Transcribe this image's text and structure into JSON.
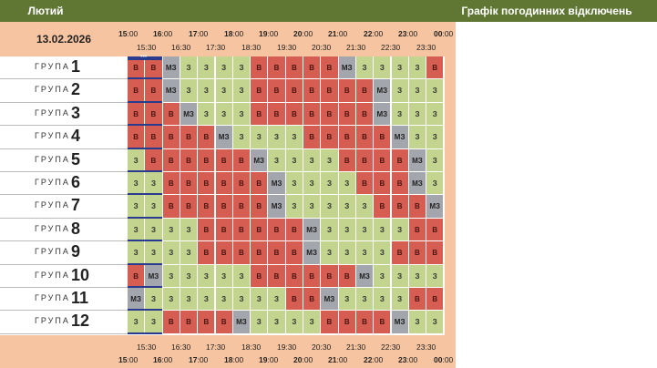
{
  "header": {
    "month": "Лютий",
    "title": "Графік погодинних відключень"
  },
  "date": "13.02.2026",
  "timeline": {
    "hours_major": [
      "15",
      "16",
      "17",
      "18",
      "19",
      "20",
      "21",
      "22",
      "23",
      "00"
    ],
    "minutes_major": ":00",
    "half_hours": [
      "15:30",
      "16:30",
      "17:30",
      "18:30",
      "19:30",
      "20:30",
      "21:30",
      "22:30",
      "23:30"
    ]
  },
  "group_word": "ГРУПА",
  "now_marker": "•••",
  "groups": [
    {
      "num": "1",
      "cells": [
        "В",
        "В",
        "МЗ",
        "З",
        "З",
        "З",
        "З",
        "В",
        "В",
        "В",
        "В",
        "В",
        "МЗ",
        "З",
        "З",
        "З",
        "З",
        "В"
      ]
    },
    {
      "num": "2",
      "cells": [
        "В",
        "В",
        "МЗ",
        "З",
        "З",
        "З",
        "З",
        "В",
        "В",
        "В",
        "В",
        "В",
        "В",
        "В",
        "МЗ",
        "З",
        "З",
        "З"
      ]
    },
    {
      "num": "3",
      "cells": [
        "В",
        "В",
        "В",
        "МЗ",
        "З",
        "З",
        "З",
        "В",
        "В",
        "В",
        "В",
        "В",
        "В",
        "В",
        "МЗ",
        "З",
        "З",
        "З"
      ]
    },
    {
      "num": "4",
      "cells": [
        "В",
        "В",
        "В",
        "В",
        "В",
        "МЗ",
        "З",
        "З",
        "З",
        "З",
        "В",
        "В",
        "В",
        "В",
        "В",
        "МЗ",
        "З",
        "З"
      ]
    },
    {
      "num": "5",
      "cells": [
        "З",
        "В",
        "В",
        "В",
        "В",
        "В",
        "В",
        "МЗ",
        "З",
        "З",
        "З",
        "З",
        "В",
        "В",
        "В",
        "В",
        "МЗ",
        "З"
      ]
    },
    {
      "num": "6",
      "cells": [
        "З",
        "З",
        "В",
        "В",
        "В",
        "В",
        "В",
        "В",
        "МЗ",
        "З",
        "З",
        "З",
        "З",
        "В",
        "В",
        "В",
        "МЗ",
        "З"
      ]
    },
    {
      "num": "7",
      "cells": [
        "З",
        "З",
        "В",
        "В",
        "В",
        "В",
        "В",
        "В",
        "МЗ",
        "З",
        "З",
        "З",
        "З",
        "З",
        "В",
        "В",
        "В",
        "МЗ"
      ]
    },
    {
      "num": "8",
      "cells": [
        "З",
        "З",
        "З",
        "З",
        "В",
        "В",
        "В",
        "В",
        "В",
        "В",
        "МЗ",
        "З",
        "З",
        "З",
        "З",
        "З",
        "В",
        "В"
      ]
    },
    {
      "num": "9",
      "cells": [
        "З",
        "З",
        "З",
        "З",
        "В",
        "В",
        "В",
        "В",
        "В",
        "В",
        "МЗ",
        "З",
        "З",
        "З",
        "З",
        "В",
        "В",
        "В"
      ]
    },
    {
      "num": "10",
      "cells": [
        "В",
        "МЗ",
        "З",
        "З",
        "З",
        "З",
        "З",
        "В",
        "В",
        "В",
        "В",
        "В",
        "В",
        "МЗ",
        "З",
        "З",
        "З",
        "З"
      ]
    },
    {
      "num": "11",
      "cells": [
        "МЗ",
        "З",
        "З",
        "З",
        "З",
        "З",
        "З",
        "З",
        "З",
        "В",
        "В",
        "МЗ",
        "З",
        "З",
        "З",
        "З",
        "В",
        "В"
      ]
    },
    {
      "num": "12",
      "cells": [
        "З",
        "З",
        "В",
        "В",
        "В",
        "В",
        "МЗ",
        "З",
        "З",
        "З",
        "З",
        "В",
        "В",
        "В",
        "В",
        "МЗ",
        "З",
        "З"
      ]
    }
  ],
  "colors": {
    "off": "#d55d52",
    "on": "#c3d48f",
    "maybe": "#a3a6ad",
    "header": "#5f7733",
    "peach": "#f6c4a0",
    "now": "#2a3a8e"
  }
}
